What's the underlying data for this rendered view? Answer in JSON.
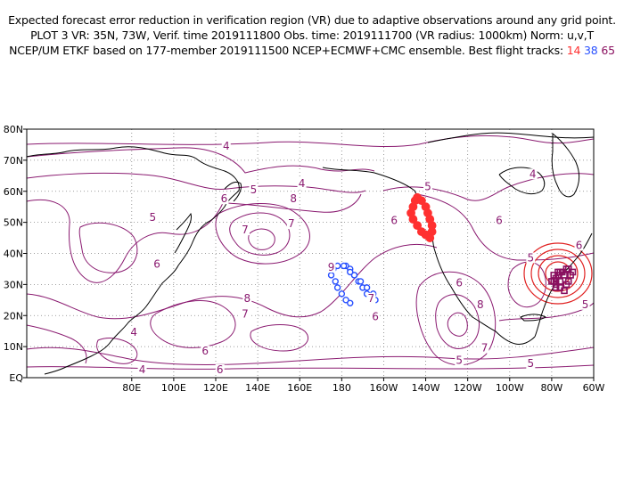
{
  "header": {
    "line1": "Expected forecast error reduction in verification region (VR) due to adaptive observations around any grid point.",
    "line2": "PLOT 3 VR: 35N, 73W, Verif. time 2019111800 Obs. time: 2019111700 (VR radius: 1000km) Norm: u,v,T",
    "line3_prefix": "NCEP/UM ETKF based on 177-member 2019111500 NCEP+ECMWF+CMC ensemble. Best flight tracks:",
    "track_red": "14",
    "track_blue": "38",
    "track_purple": "65"
  },
  "colors": {
    "contour": "#8a1a70",
    "coast": "#000000",
    "grid": "#808080",
    "track_red": "#ff3030",
    "track_blue": "#2850ff",
    "track_purple": "#8a1060",
    "verif_circle": "#e02020"
  },
  "map": {
    "projection": "cylindrical",
    "lon_range": [
      30,
      300
    ],
    "lat_range": [
      0,
      80
    ],
    "lat_ticks": [
      "EQ",
      "10N",
      "20N",
      "30N",
      "40N",
      "50N",
      "60N",
      "70N",
      "80N"
    ],
    "lon_ticks": [
      "80E",
      "100E",
      "120E",
      "140E",
      "160E",
      "180",
      "160W",
      "140W",
      "120W",
      "100W",
      "80W",
      "60W"
    ],
    "grid": "dotted",
    "verification_region": {
      "center_lat": 35,
      "center_lon": -73,
      "radius_km": 1000
    }
  },
  "contour_labels": [
    {
      "text": "4",
      "lon": 125,
      "lat": 74
    },
    {
      "text": "4",
      "lon": 161,
      "lat": 62
    },
    {
      "text": "4",
      "lon": 271,
      "lat": 65
    },
    {
      "text": "5",
      "lon": 138,
      "lat": 60
    },
    {
      "text": "5",
      "lon": 221,
      "lat": 61
    },
    {
      "text": "5",
      "lon": 270,
      "lat": 38
    },
    {
      "text": "5",
      "lon": 296,
      "lat": 23
    },
    {
      "text": "5",
      "lon": 236,
      "lat": 5
    },
    {
      "text": "5",
      "lon": 270,
      "lat": 4
    },
    {
      "text": "6",
      "lon": 124,
      "lat": 57
    },
    {
      "text": "6",
      "lon": 92,
      "lat": 36
    },
    {
      "text": "6",
      "lon": 115,
      "lat": 8
    },
    {
      "text": "6",
      "lon": 122,
      "lat": 2
    },
    {
      "text": "6",
      "lon": 205,
      "lat": 50
    },
    {
      "text": "6",
      "lon": 255,
      "lat": 50
    },
    {
      "text": "6",
      "lon": 236,
      "lat": 30
    },
    {
      "text": "6",
      "lon": 196,
      "lat": 19
    },
    {
      "text": "7",
      "lon": 134,
      "lat": 47
    },
    {
      "text": "7",
      "lon": 156,
      "lat": 49
    },
    {
      "text": "7",
      "lon": 134,
      "lat": 20
    },
    {
      "text": "7",
      "lon": 194,
      "lat": 25
    },
    {
      "text": "7",
      "lon": 248,
      "lat": 9
    },
    {
      "text": "8",
      "lon": 157,
      "lat": 57
    },
    {
      "text": "8",
      "lon": 135,
      "lat": 25
    },
    {
      "text": "8",
      "lon": 246,
      "lat": 23
    },
    {
      "text": "9",
      "lon": 175,
      "lat": 35
    },
    {
      "text": "4",
      "lon": 81,
      "lat": 14
    },
    {
      "text": "4",
      "lon": 85,
      "lat": 2
    },
    {
      "text": "5",
      "lon": 90,
      "lat": 51
    },
    {
      "text": "6",
      "lon": 293,
      "lat": 42
    }
  ],
  "flight_tracks": {
    "red": [
      [
        -144,
        58
      ],
      [
        -145,
        57
      ],
      [
        -146,
        55
      ],
      [
        -147,
        53
      ],
      [
        -146,
        51
      ],
      [
        -144,
        49
      ],
      [
        -142,
        47
      ],
      [
        -140,
        46
      ],
      [
        -138,
        45
      ],
      [
        -137,
        47
      ],
      [
        -137,
        49
      ],
      [
        -138,
        51
      ],
      [
        -139,
        53
      ],
      [
        -140,
        55
      ],
      [
        -142,
        57
      ]
    ],
    "blue": [
      [
        -178,
        36
      ],
      [
        -176,
        35
      ],
      [
        -174,
        33
      ],
      [
        -172,
        31
      ],
      [
        -170,
        29
      ],
      [
        -168,
        27
      ],
      [
        -166,
        26
      ],
      [
        -164,
        25
      ],
      [
        -165,
        27
      ],
      [
        -168,
        29
      ],
      [
        -171,
        31
      ],
      [
        -174,
        33
      ],
      [
        -176,
        34
      ],
      [
        -179,
        36
      ],
      [
        -182,
        36
      ],
      [
        -184,
        35
      ],
      [
        -185,
        33
      ],
      [
        -183,
        31
      ],
      [
        -182,
        29
      ],
      [
        -180,
        27
      ],
      [
        -178,
        25
      ],
      [
        -176,
        24
      ]
    ],
    "purple": [
      [
        -76,
        34
      ],
      [
        -77,
        33
      ],
      [
        -78,
        32
      ],
      [
        -79,
        31
      ],
      [
        -78,
        30
      ],
      [
        -76,
        29
      ],
      [
        -74,
        28
      ],
      [
        -73,
        30
      ],
      [
        -72,
        31
      ],
      [
        -71,
        33
      ],
      [
        -73,
        35
      ],
      [
        -75,
        34
      ],
      [
        -77,
        34
      ],
      [
        -79,
        33
      ],
      [
        -80,
        31
      ],
      [
        -78,
        29
      ],
      [
        -76,
        31
      ],
      [
        -74,
        33
      ],
      [
        -72,
        35
      ],
      [
        -70,
        34
      ]
    ]
  }
}
